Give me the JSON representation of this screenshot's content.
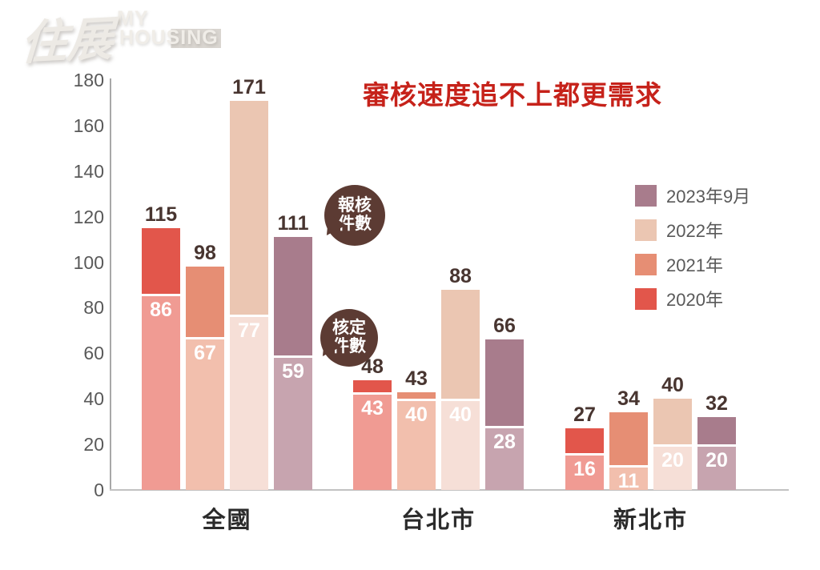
{
  "logo": {
    "brand_zh": "住展",
    "brand_en_line1": "MY",
    "brand_en_line2": "HOUSING"
  },
  "title": "審核速度追不上都更需求",
  "callouts": {
    "reported": {
      "line1": "報核",
      "line2": "件數"
    },
    "approved": {
      "line1": "核定",
      "line2": "件數"
    }
  },
  "colors": {
    "title": "#c6221a",
    "callout_bg": "#5c3b33",
    "axis_label": "#595959",
    "category_label": "#2b2b2b",
    "total_label": "#483530",
    "inner_label": "#ffffff"
  },
  "chart_data": {
    "type": "bar",
    "subtype": "grouped-overlay-stacked",
    "title": "審核速度追不上都更需求",
    "note": "Full bar height = 報核件數 (reported cases); lighter lower segment = 核定件數 (approved cases)",
    "categories": [
      "全國",
      "台北市",
      "新北市"
    ],
    "series": [
      {
        "name": "2020年",
        "color": "#e2564b",
        "light_color": "#f09b93",
        "reported": [
          115,
          48,
          27
        ],
        "approved": [
          86,
          43,
          16
        ]
      },
      {
        "name": "2021年",
        "color": "#e68e74",
        "light_color": "#f2bfad",
        "reported": [
          98,
          43,
          34
        ],
        "approved": [
          67,
          40,
          11
        ]
      },
      {
        "name": "2022年",
        "color": "#ebc6b2",
        "light_color": "#f6dfd7",
        "reported": [
          171,
          88,
          40
        ],
        "approved": [
          77,
          40,
          20
        ]
      },
      {
        "name": "2023年9月",
        "color": "#a87c8c",
        "light_color": "#c7a4af",
        "reported": [
          111,
          66,
          32
        ],
        "approved": [
          59,
          28,
          20
        ]
      }
    ],
    "legend_order": [
      "2023年9月",
      "2022年",
      "2021年",
      "2020年"
    ],
    "legend_position": "right",
    "ylim": [
      0,
      180
    ],
    "ytick_step": 20,
    "grid": false
  }
}
